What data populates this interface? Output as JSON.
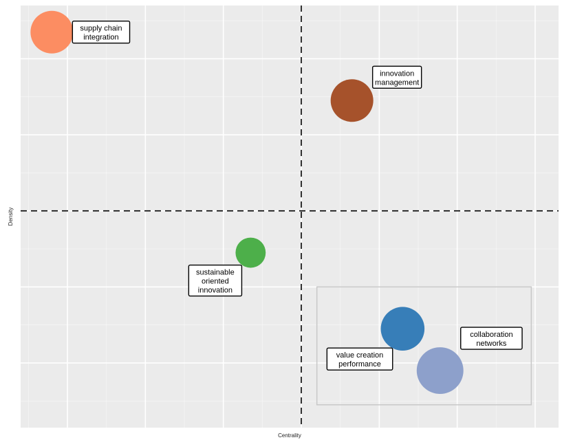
{
  "chart_data": {
    "type": "scatter",
    "xlabel": "Centrality",
    "ylabel": "Density",
    "grid": true,
    "reference_lines": {
      "vertical": 0.0,
      "horizontal": 0.0
    },
    "xlim": [
      -3.6,
      3.3
    ],
    "ylim": [
      -2.85,
      2.7
    ],
    "points": [
      {
        "label": "supply chain\nintegration",
        "x": -3.2,
        "y": 2.35,
        "size": 1.0,
        "color": "#fc8d62"
      },
      {
        "label": "innovation\nmanagement",
        "x": 0.65,
        "y": 1.45,
        "size": 1.0,
        "color": "#a6522b"
      },
      {
        "label": "sustainable\noriented\ninnovation",
        "x": -0.65,
        "y": -0.55,
        "size": 0.5,
        "color": "#4daf4a"
      },
      {
        "label": "value creation\nperformance",
        "x": 1.3,
        "y": -1.55,
        "size": 1.05,
        "color": "#377eb8"
      },
      {
        "label": "collaboration\nnetworks",
        "x": 1.78,
        "y": -2.1,
        "size": 1.2,
        "color": "#8da0cb"
      }
    ],
    "highlight_box": {
      "x": [
        0.2,
        2.95
      ],
      "y": [
        -2.55,
        -1.0
      ]
    }
  }
}
